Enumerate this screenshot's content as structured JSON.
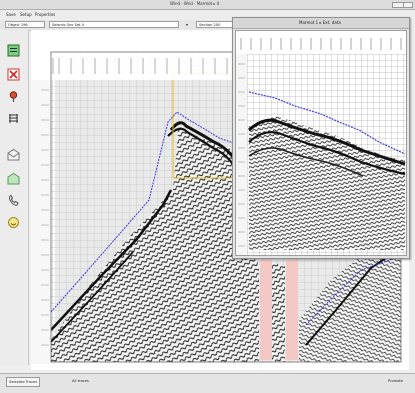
{
  "window": {
    "title": "Wind · Wnd · Marmot ▸ 4"
  },
  "menu": {
    "items": [
      "Save",
      "Setup",
      "Properties"
    ]
  },
  "toolbar": {
    "field1": "Object 196",
    "field2": "Seismic Sec Set 4",
    "field3": "Section 200",
    "arrow": "▾"
  },
  "left_tools": [
    "list-icon",
    "close-x-icon",
    "pin-icon",
    "ruler-icon",
    "envelope-icon",
    "envelope-open-icon",
    "phone-icon",
    "smile-icon"
  ],
  "right_panel": {
    "title": "Marmot 1 ▸ Ext. data"
  },
  "status": {
    "button": "Selected Traces",
    "middle": "All traces",
    "right": "Promote"
  },
  "colors": {
    "accent_pink": "#f4c8c4",
    "horizon_blue": "#3c3ce0",
    "selection_yellow": "#e4c028"
  }
}
